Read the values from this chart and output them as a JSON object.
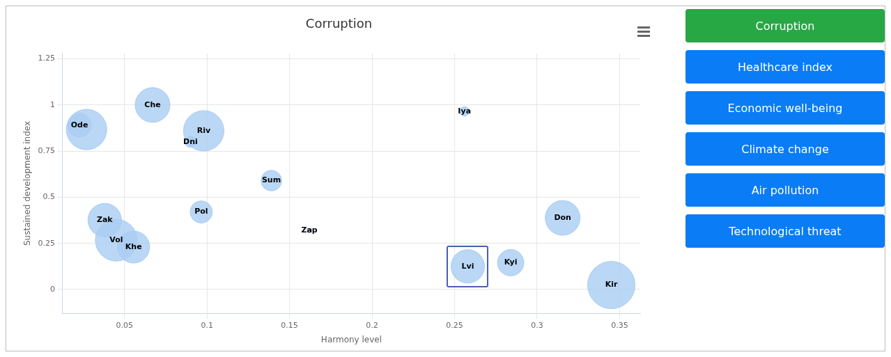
{
  "chart_data": {
    "type": "bubble",
    "title": "Corruption",
    "xlabel": "Harmony level",
    "ylabel": "Sustained development index",
    "xlim": [
      0.0125,
      0.3625
    ],
    "xticks": [
      0.05,
      0.1,
      0.15,
      0.2,
      0.25,
      0.3,
      0.35
    ],
    "ylim": [
      -0.13,
      1.28
    ],
    "yticks": [
      0,
      0.25,
      0.5,
      0.75,
      1,
      1.25
    ],
    "grid": true,
    "legend": false,
    "series": [
      {
        "color": "#a9cdf2",
        "x": [
          0.027
        ],
        "values": [
          0.867
        ],
        "sizes": [
          0.73
        ]
      },
      {
        "name": "Ode",
        "color": "#a9cdf2",
        "x": [
          0.0227
        ],
        "values": [
          0.89
        ],
        "sizes": [
          0.25
        ]
      },
      {
        "name": "Che",
        "color": "#a9cdf2",
        "x": [
          0.067
        ],
        "values": [
          1.0
        ],
        "sizes": [
          0.54
        ]
      },
      {
        "name": "Riv",
        "color": "#a9cdf2",
        "x": [
          0.098
        ],
        "values": [
          0.86
        ],
        "sizes": [
          0.73
        ]
      },
      {
        "name": "Dni",
        "color": "#a9cdf2",
        "x": [
          0.09
        ],
        "values": [
          0.8
        ],
        "sizes": [
          0.055
        ]
      },
      {
        "name": "Sum",
        "color": "#a9cdf2",
        "x": [
          0.139
        ],
        "values": [
          0.59
        ],
        "sizes": [
          0.19
        ]
      },
      {
        "name": "Pol",
        "color": "#a9cdf2",
        "x": [
          0.0965
        ],
        "values": [
          0.42
        ],
        "sizes": [
          0.22
        ]
      },
      {
        "name": "Zap",
        "color": "#a9cdf2",
        "x": [
          0.162
        ],
        "values": [
          0.32
        ],
        "sizes": [
          0.01
        ]
      },
      {
        "name": "Zak",
        "color": "#a9cdf2",
        "x": [
          0.038
        ],
        "values": [
          0.376
        ],
        "sizes": [
          0.5
        ]
      },
      {
        "name": "Vol",
        "color": "#a9cdf2",
        "x": [
          0.045
        ],
        "values": [
          0.267
        ],
        "sizes": [
          0.78
        ]
      },
      {
        "name": "Khe",
        "color": "#a9cdf2",
        "x": [
          0.0555
        ],
        "values": [
          0.23
        ],
        "sizes": [
          0.46
        ]
      },
      {
        "name": "Iya",
        "color": "#a9cdf2",
        "x": [
          0.256
        ],
        "values": [
          0.965
        ],
        "sizes": [
          0.04
        ]
      },
      {
        "name": "Lvi",
        "color": "#a9cdf2",
        "x": [
          0.258
        ],
        "values": [
          0.125
        ],
        "sizes": [
          0.5
        ]
      },
      {
        "name": "Kyi",
        "color": "#a9cdf2",
        "x": [
          0.284
        ],
        "values": [
          0.145
        ],
        "sizes": [
          0.31
        ]
      },
      {
        "name": "Don",
        "color": "#a9cdf2",
        "x": [
          0.3155
        ],
        "values": [
          0.388
        ],
        "sizes": [
          0.54
        ]
      },
      {
        "name": "Kir",
        "color": "#a9cdf2",
        "x": [
          0.345
        ],
        "values": [
          0.024
        ],
        "sizes": [
          1
        ]
      }
    ],
    "annotations": [
      "Corruption",
      "Healthcare index",
      "Economic well-being",
      "Climate change",
      "Air pollution",
      "Technological threat"
    ]
  }
}
